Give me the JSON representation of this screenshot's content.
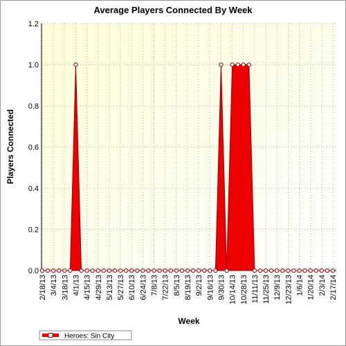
{
  "chart_data": {
    "type": "area",
    "title": "Average Players Connected By Week",
    "x_label": "Week",
    "y_label": "Players Connected",
    "categories": [
      "2/18/13",
      null,
      "3/4/13",
      null,
      "3/18/13",
      null,
      "4/1/13",
      null,
      "4/15/13",
      null,
      "4/29/13",
      null,
      "5/13/13",
      null,
      "5/27/13",
      null,
      "6/10/13",
      null,
      "6/24/13",
      null,
      "7/8/13",
      null,
      "7/22/13",
      null,
      "8/5/13",
      null,
      "8/19/13",
      null,
      "9/2/13",
      null,
      "9/16/13",
      null,
      "9/30/13",
      null,
      "10/14/13",
      null,
      "10/28/13",
      null,
      "11/11/13",
      null,
      "11/25/13",
      null,
      "12/9/13",
      null,
      "12/23/13",
      null,
      "1/6/14",
      null,
      "1/20/14",
      null,
      "2/3/14",
      null,
      "2/17/14"
    ],
    "series": [
      {
        "name": "Heroes: Sin City",
        "color": "#ee0000",
        "values": [
          0,
          0,
          0,
          0,
          0,
          0,
          1,
          0,
          0,
          0,
          0,
          0,
          0,
          0,
          0,
          0,
          0,
          0,
          0,
          0,
          0,
          0,
          0,
          0,
          0,
          0,
          0,
          0,
          0,
          0,
          0,
          0,
          1,
          0,
          1,
          1,
          1,
          1,
          0,
          0,
          0,
          0,
          0,
          0,
          0,
          0,
          0,
          0,
          0,
          0,
          0,
          0,
          0
        ]
      }
    ],
    "ylim": [
      0,
      1.2
    ],
    "yticks": [
      {
        "value": 0,
        "label": "0.0"
      },
      {
        "value": 0.2,
        "label": "0.2"
      },
      {
        "value": 0.4,
        "label": "0.4"
      },
      {
        "value": 0.6,
        "label": "0.6"
      },
      {
        "value": 0.8,
        "label": "0.8"
      },
      {
        "value": 1,
        "label": "1.0"
      },
      {
        "value": 1.2,
        "label": "1.2"
      }
    ],
    "grid": true
  }
}
